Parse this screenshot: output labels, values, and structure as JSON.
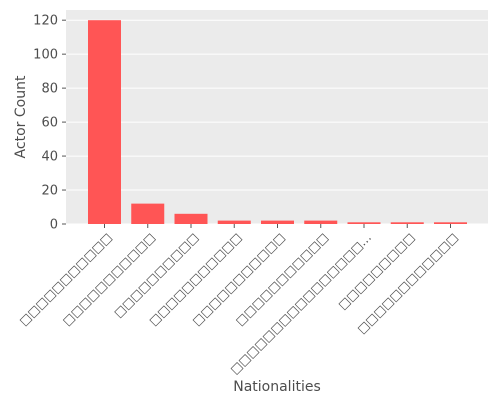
{
  "chart_data": {
    "type": "bar",
    "title": "",
    "xlabel": "Nationalities",
    "ylabel": "Actor Count",
    "categories": [
      "□□□□□□□□□□□",
      "□□□□□□□□□□□",
      "□□□□□□□□□□",
      "□□□□□□□□□□□",
      "□□□□□□□□□□□",
      "□□□□□□□□□□□",
      "□□□□□□□□□□□□□□□□…",
      "□□□□□□□□□",
      "□□□□□□□□□□□□"
    ],
    "values": [
      120,
      12,
      6,
      2,
      2,
      2,
      1,
      1,
      1
    ],
    "ylim": [
      0,
      126
    ],
    "yticks": [
      0,
      20,
      40,
      60,
      80,
      100,
      120
    ],
    "grid": true,
    "colors": {
      "bar": "#ff5555",
      "panel": "#ebebeb",
      "grid": "#ffffff"
    }
  }
}
